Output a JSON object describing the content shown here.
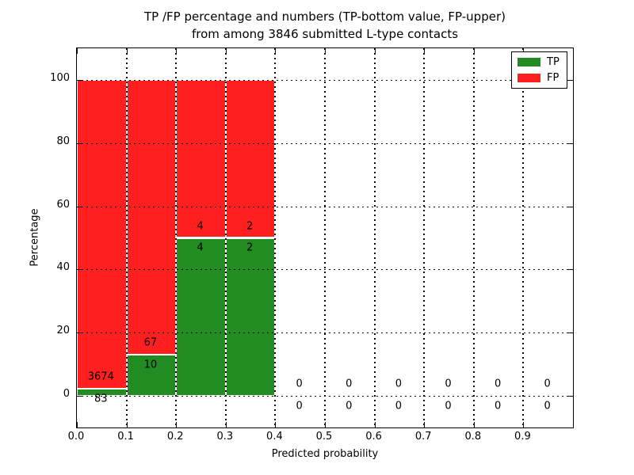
{
  "figure": {
    "background": "#ffffff"
  },
  "chart_data": {
    "type": "bar",
    "stacked": true,
    "title": "TP /FP percentage and numbers (TP-bottom value, FP-upper) from among 3846 submitted L-type contacts",
    "title_lines": [
      "TP /FP percentage and numbers (TP-bottom value, FP-upper)",
      "from among 3846 submitted L-type contacts"
    ],
    "xlabel": "Predicted probability",
    "ylabel": "Percentage",
    "xlim": [
      0.0,
      1.0
    ],
    "ylim": [
      -10,
      110
    ],
    "xticks": [
      0.0,
      0.1,
      0.2,
      0.3,
      0.4,
      0.5,
      0.6,
      0.7,
      0.8,
      0.9
    ],
    "xtick_labels": [
      "0.0",
      "0.1",
      "0.2",
      "0.3",
      "0.4",
      "0.5",
      "0.6",
      "0.7",
      "0.8",
      "0.9"
    ],
    "yticks": [
      0,
      20,
      40,
      60,
      80,
      100
    ],
    "ytick_labels": [
      "0",
      "20",
      "40",
      "60",
      "80",
      "100"
    ],
    "grid": true,
    "total_contacts": 3846,
    "colors": {
      "tp": "#228b22",
      "fp": "#ff1f1f"
    },
    "legend": {
      "position": "upper right",
      "entries": [
        {
          "label": "TP",
          "color": "#228b22"
        },
        {
          "label": "FP",
          "color": "#ff1f1f"
        }
      ]
    },
    "bins": [
      {
        "x0": 0.0,
        "x1": 0.1,
        "tp_count": 83,
        "fp_count": 3674,
        "tp_pct": 2.2,
        "fp_pct": 97.8
      },
      {
        "x0": 0.1,
        "x1": 0.2,
        "tp_count": 10,
        "fp_count": 67,
        "tp_pct": 13.0,
        "fp_pct": 87.0
      },
      {
        "x0": 0.2,
        "x1": 0.3,
        "tp_count": 4,
        "fp_count": 4,
        "tp_pct": 50.0,
        "fp_pct": 50.0
      },
      {
        "x0": 0.3,
        "x1": 0.4,
        "tp_count": 2,
        "fp_count": 2,
        "tp_pct": 50.0,
        "fp_pct": 50.0
      },
      {
        "x0": 0.4,
        "x1": 0.5,
        "tp_count": 0,
        "fp_count": 0,
        "tp_pct": 0,
        "fp_pct": 0
      },
      {
        "x0": 0.5,
        "x1": 0.6,
        "tp_count": 0,
        "fp_count": 0,
        "tp_pct": 0,
        "fp_pct": 0
      },
      {
        "x0": 0.6,
        "x1": 0.7,
        "tp_count": 0,
        "fp_count": 0,
        "tp_pct": 0,
        "fp_pct": 0
      },
      {
        "x0": 0.7,
        "x1": 0.8,
        "tp_count": 0,
        "fp_count": 0,
        "tp_pct": 0,
        "fp_pct": 0
      },
      {
        "x0": 0.8,
        "x1": 0.9,
        "tp_count": 0,
        "fp_count": 0,
        "tp_pct": 0,
        "fp_pct": 0
      },
      {
        "x0": 0.9,
        "x1": 1.0,
        "tp_count": 0,
        "fp_count": 0,
        "tp_pct": 0,
        "fp_pct": 0
      }
    ]
  }
}
